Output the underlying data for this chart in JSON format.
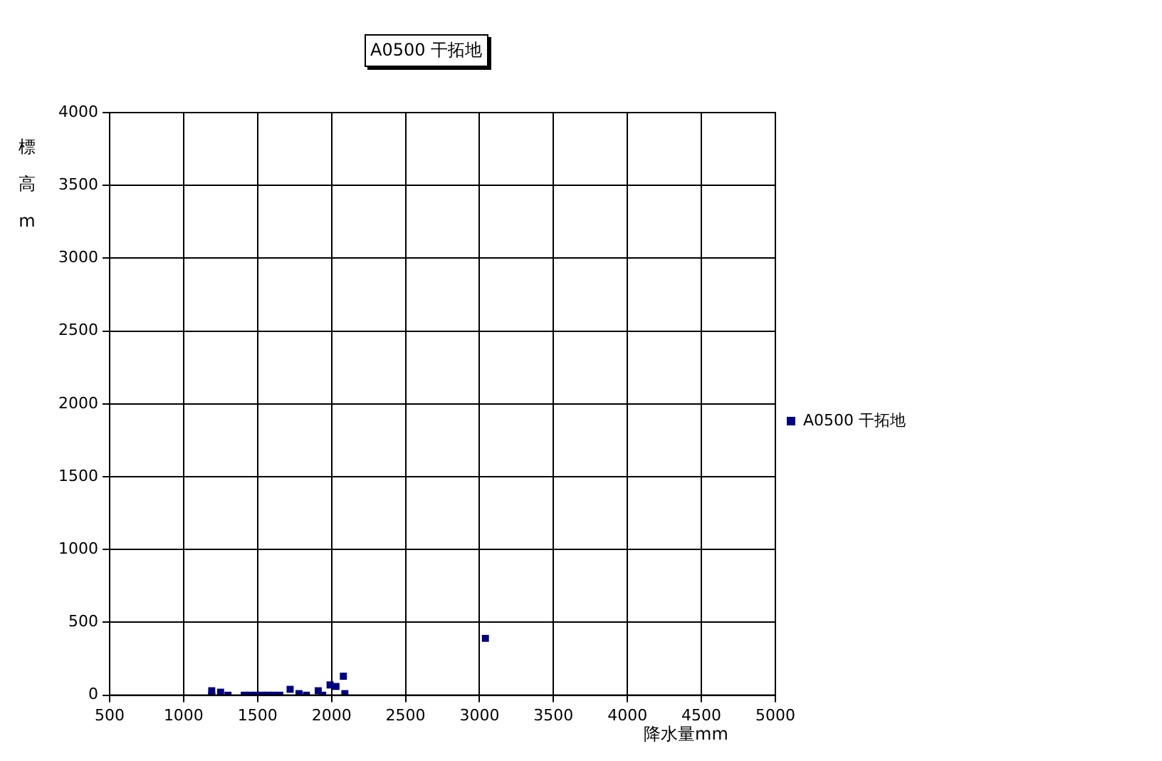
{
  "chart_data": {
    "type": "scatter",
    "title": "A0500 干拓地",
    "xlabel": "降水量mm",
    "ylabel": "標高m",
    "series": [
      {
        "name": "A0500 干拓地",
        "color": "#000080",
        "x": [
          1190,
          1190,
          1250,
          1300,
          1410,
          1450,
          1490,
          1530,
          1570,
          1610,
          1650,
          1720,
          1780,
          1830,
          1910,
          1940,
          1990,
          2030,
          2080,
          2090,
          3040
        ],
        "values": [
          30,
          0,
          20,
          0,
          0,
          0,
          0,
          0,
          0,
          0,
          0,
          40,
          10,
          0,
          30,
          0,
          70,
          60,
          130,
          10,
          390
        ]
      }
    ],
    "xlim": [
      500,
      5000
    ],
    "xticks": [
      500,
      1000,
      1500,
      2000,
      2500,
      3000,
      3500,
      4000,
      4500,
      5000
    ],
    "ylim": [
      0,
      4000
    ],
    "yticks": [
      0,
      500,
      1000,
      1500,
      2000,
      2500,
      3000,
      3500,
      4000
    ],
    "grid": true,
    "legend": "right",
    "marker": "square"
  }
}
